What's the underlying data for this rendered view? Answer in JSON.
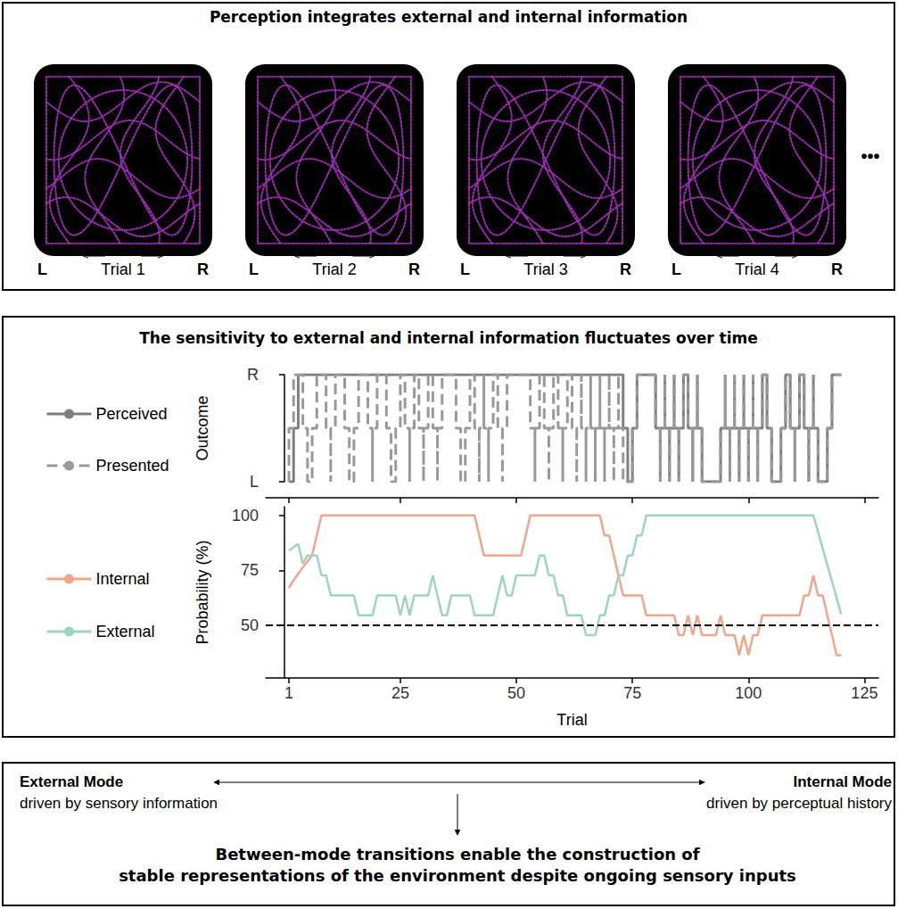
{
  "top_panel": {
    "title": "Perception integrates external and internal information",
    "trials": [
      "Trial 1",
      "Trial 2",
      "Trial 3",
      "Trial 4"
    ],
    "left_label": "L",
    "right_label": "R",
    "continuation": "•••"
  },
  "middle_panel": {
    "title": "The sensitivity to external and internal information fluctuates over time"
  },
  "chart_data": [
    {
      "type": "line",
      "ylabel": "Outcome",
      "y_categories": [
        "L",
        "R"
      ],
      "x": [
        1,
        2,
        3,
        4,
        5,
        6,
        7,
        8,
        9,
        10,
        11,
        12,
        13,
        14,
        15,
        16,
        17,
        18,
        19,
        20,
        21,
        22,
        23,
        24,
        25,
        26,
        27,
        28,
        29,
        30,
        31,
        32,
        33,
        34,
        35,
        36,
        37,
        38,
        39,
        40,
        41,
        42,
        43,
        44,
        45,
        46,
        47,
        48,
        49,
        50,
        51,
        52,
        53,
        54,
        55,
        56,
        57,
        58,
        59,
        60,
        61,
        62,
        63,
        64,
        65,
        66,
        67,
        68,
        69,
        70,
        71,
        72,
        73,
        74,
        75,
        76,
        77,
        78,
        79,
        80,
        81,
        82,
        83,
        84,
        85,
        86,
        87,
        88,
        89,
        90,
        91,
        92,
        93,
        94,
        95,
        96,
        97,
        98,
        99,
        100,
        101,
        102,
        103,
        104,
        105,
        106,
        107,
        108,
        109,
        110,
        111,
        112,
        113,
        114,
        115,
        116,
        117,
        118,
        119,
        120
      ],
      "series": [
        {
          "name": "Perceived",
          "color": "#7f7f7f",
          "line_style": "solid",
          "values": [
            "L",
            "L",
            "R",
            "R",
            "R",
            "R",
            "R",
            "R",
            "R",
            "R",
            "R",
            "R",
            "R",
            "R",
            "R",
            "R",
            "R",
            "R",
            "R",
            "R",
            "R",
            "R",
            "R",
            "R",
            "R",
            "R",
            "R",
            "R",
            "R",
            "R",
            "R",
            "R",
            "R",
            "R",
            "R",
            "R",
            "R",
            "R",
            "R",
            "R",
            "R",
            "R",
            "R",
            "R",
            "R",
            "R",
            "R",
            "R",
            "R",
            "R",
            "R",
            "R",
            "R",
            "R",
            "R",
            "R",
            "R",
            "R",
            "R",
            "R",
            "R",
            "R",
            "R",
            "R",
            "R",
            "R",
            "R",
            "R",
            "R",
            "R",
            "R",
            "R",
            "R",
            "L",
            "L",
            "R",
            "R",
            "R",
            "R",
            "R",
            "L",
            "R",
            "L",
            "R",
            "L",
            "R",
            "R",
            "L",
            "R",
            "L",
            "L",
            "L",
            "L",
            "L",
            "R",
            "L",
            "R",
            "L",
            "R",
            "L",
            "R",
            "L",
            "R",
            "R",
            "L",
            "L",
            "L",
            "R",
            "R",
            "L",
            "R",
            "R",
            "L",
            "R",
            "L",
            "L",
            "L",
            "R",
            "R",
            "R"
          ]
        },
        {
          "name": "Presented",
          "color": "#999999",
          "line_style": "dashed",
          "values": [
            "L",
            "R",
            "R",
            "R",
            "L",
            "L",
            "R",
            "R",
            "R",
            "L",
            "R",
            "R",
            "R",
            "L",
            "L",
            "R",
            "R",
            "R",
            "L",
            "R",
            "R",
            "R",
            "L",
            "L",
            "R",
            "R",
            "L",
            "R",
            "R",
            "L",
            "R",
            "R",
            "L",
            "R",
            "R",
            "R",
            "R",
            "L",
            "L",
            "R",
            "R",
            "L",
            "R",
            "L",
            "R",
            "R",
            "L",
            "R",
            "R",
            "R",
            "R",
            "R",
            "R",
            "L",
            "R",
            "R",
            "L",
            "R",
            "R",
            "L",
            "R",
            "R",
            "L",
            "R",
            "L",
            "R",
            "L",
            "R",
            "L",
            "R",
            "L",
            "R",
            "L",
            "L",
            "L",
            "R",
            "R",
            "R",
            "R",
            "R",
            "L",
            "R",
            "L",
            "R",
            "L",
            "R",
            "R",
            "L",
            "R",
            "L",
            "L",
            "L",
            "L",
            "L",
            "R",
            "L",
            "R",
            "L",
            "R",
            "L",
            "R",
            "L",
            "R",
            "R",
            "L",
            "L",
            "L",
            "R",
            "R",
            "L",
            "R",
            "R",
            "L",
            "R",
            "L",
            "L",
            "L",
            "R",
            "R",
            "R"
          ]
        }
      ],
      "xlim": [
        -4,
        128
      ],
      "xticks": [
        1,
        25,
        50,
        75,
        100,
        125
      ],
      "tick_labels": "y",
      "legend": "left",
      "grid": false
    },
    {
      "type": "line",
      "ylabel": "Probability (%)",
      "xlabel": "Trial",
      "x": [
        1,
        2,
        3,
        4,
        5,
        6,
        7,
        8,
        9,
        10,
        11,
        12,
        13,
        14,
        15,
        16,
        17,
        18,
        19,
        20,
        21,
        22,
        23,
        24,
        25,
        26,
        27,
        28,
        29,
        30,
        31,
        32,
        33,
        34,
        35,
        36,
        37,
        38,
        39,
        40,
        41,
        42,
        43,
        44,
        45,
        46,
        47,
        48,
        49,
        50,
        51,
        52,
        53,
        54,
        55,
        56,
        57,
        58,
        59,
        60,
        61,
        62,
        63,
        64,
        65,
        66,
        67,
        68,
        69,
        70,
        71,
        72,
        73,
        74,
        75,
        76,
        77,
        78,
        79,
        80,
        81,
        82,
        83,
        84,
        85,
        86,
        87,
        88,
        89,
        90,
        91,
        92,
        93,
        94,
        95,
        96,
        97,
        98,
        99,
        100,
        101,
        102,
        103,
        104,
        105,
        106,
        107,
        108,
        109,
        110,
        111,
        112,
        113,
        114,
        115,
        116,
        117,
        118,
        119,
        120
      ],
      "series": [
        {
          "name": "Internal",
          "color": "#f0a68c",
          "values": [
            67.0,
            70.5,
            73.5,
            76.5,
            79.0,
            82.0,
            90.9,
            100,
            100,
            100,
            100,
            100,
            100,
            100,
            100,
            100,
            100,
            100,
            100,
            100,
            100,
            100,
            100,
            100,
            100,
            100,
            100,
            100,
            100,
            100,
            100,
            100,
            100,
            100,
            100,
            100,
            100,
            100,
            100,
            100,
            100,
            90.9,
            81.8,
            81.8,
            81.8,
            81.8,
            81.8,
            81.8,
            81.8,
            81.8,
            81.8,
            90.9,
            100,
            100,
            100,
            100,
            100,
            100,
            100,
            100,
            100,
            100,
            100,
            100,
            100,
            100,
            100,
            100,
            90.9,
            90.9,
            81.8,
            72.7,
            63.6,
            63.6,
            63.6,
            63.6,
            63.6,
            54.5,
            54.5,
            54.5,
            54.5,
            54.5,
            54.5,
            54.5,
            45.5,
            45.5,
            54.5,
            45.5,
            54.5,
            45.5,
            45.5,
            45.5,
            45.5,
            54.5,
            45.5,
            45.5,
            45.5,
            36.4,
            45.5,
            36.4,
            45.5,
            45.5,
            54.5,
            54.5,
            54.5,
            54.5,
            54.5,
            54.5,
            54.5,
            54.5,
            54.5,
            63.6,
            63.6,
            72.7,
            63.6,
            63.6,
            54.5,
            45.5,
            36.4,
            36.4
          ]
        },
        {
          "name": "External",
          "color": "#9dd5c0",
          "values": [
            84,
            85.5,
            87,
            78,
            81.8,
            81.8,
            81.8,
            72.7,
            72.7,
            63.6,
            63.6,
            63.6,
            63.6,
            63.6,
            63.6,
            54.5,
            54.5,
            54.5,
            54.5,
            63.6,
            63.6,
            63.6,
            63.6,
            63.6,
            54.5,
            63.6,
            54.5,
            63.6,
            63.6,
            63.6,
            63.6,
            72.7,
            63.6,
            54.5,
            54.5,
            63.6,
            63.6,
            63.6,
            63.6,
            63.6,
            54.5,
            54.5,
            54.5,
            54.5,
            54.5,
            63.6,
            72.7,
            63.6,
            63.6,
            72.7,
            72.7,
            72.7,
            72.7,
            72.7,
            81.8,
            81.8,
            72.7,
            72.7,
            63.6,
            63.6,
            54.5,
            54.5,
            54.5,
            54.5,
            45.5,
            45.5,
            45.5,
            54.5,
            54.5,
            63.6,
            63.6,
            72.7,
            72.7,
            81.8,
            81.8,
            90.9,
            90.9,
            100,
            100,
            100,
            100,
            100,
            100,
            100,
            100,
            100,
            100,
            100,
            100,
            100,
            100,
            100,
            100,
            100,
            100,
            100,
            100,
            100,
            100,
            100,
            100,
            100,
            100,
            100,
            100,
            100,
            100,
            100,
            100,
            100,
            100,
            100,
            100,
            100,
            92.5,
            85,
            77.5,
            70,
            62.5,
            55
          ]
        }
      ],
      "reference_line": {
        "value": 50,
        "color": "#000000",
        "line_style": "dashed"
      },
      "xlim": [
        -4,
        128
      ],
      "xticks": [
        1,
        25,
        50,
        75,
        100,
        125
      ],
      "ylim": [
        26,
        104
      ],
      "yticks": [
        50,
        75,
        100
      ],
      "legend": "left",
      "grid": false
    }
  ],
  "bottom_panel": {
    "left_mode": {
      "title": "External Mode",
      "text": "driven by sensory information"
    },
    "right_mode": {
      "title": "Internal Mode",
      "text": "driven by perceptual history"
    },
    "conclusion": [
      "Between-mode transitions enable the construction of",
      "stable representations of the environment despite ongoing sensory inputs"
    ]
  }
}
